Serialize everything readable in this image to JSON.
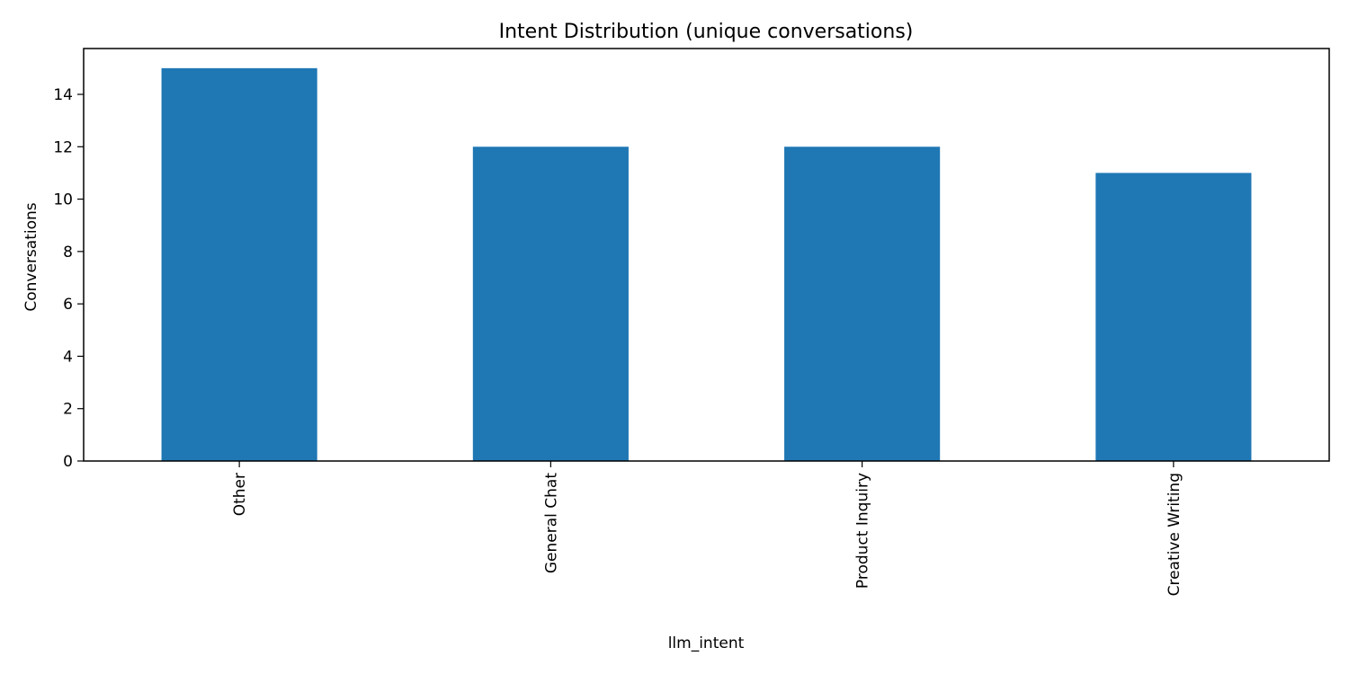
{
  "chart_data": {
    "type": "bar",
    "title": "Intent Distribution (unique conversations)",
    "xlabel": "llm_intent",
    "ylabel": "Conversations",
    "categories": [
      "Other",
      "General Chat",
      "Product Inquiry",
      "Creative Writing"
    ],
    "values": [
      15,
      12,
      12,
      11
    ],
    "ylim": [
      0,
      15.75
    ],
    "yticks": [
      0,
      2,
      4,
      6,
      8,
      10,
      12,
      14
    ],
    "xtick_rotation": "vertical",
    "grid": false,
    "legend": "none",
    "bar_color": "#1f77b4"
  }
}
